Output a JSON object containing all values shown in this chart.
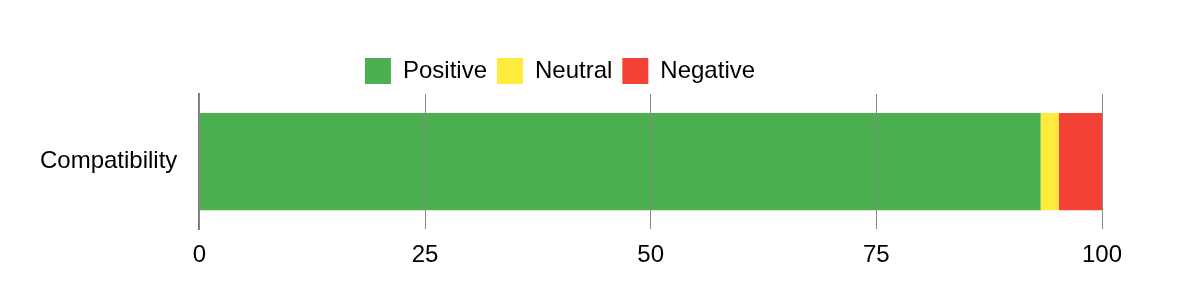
{
  "chart_data": {
    "type": "bar",
    "orientation": "horizontal",
    "stacked": true,
    "categories": [
      "Compatibility"
    ],
    "series": [
      {
        "name": "Positive",
        "color": "#4caf50",
        "values": [
          93.2
        ]
      },
      {
        "name": "Neutral",
        "color": "#ffeb3b",
        "values": [
          2
        ]
      },
      {
        "name": "Negative",
        "color": "#f44336",
        "values": [
          4.8
        ]
      }
    ],
    "xlim": [
      0,
      100
    ],
    "xticks": [
      0,
      25,
      50,
      75,
      100
    ],
    "grid": "x",
    "legend": "top"
  }
}
